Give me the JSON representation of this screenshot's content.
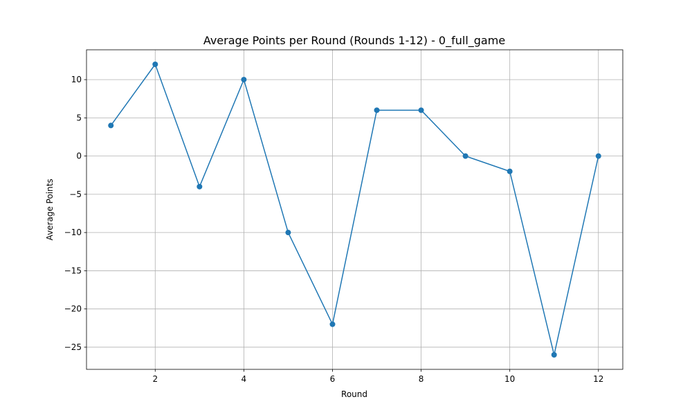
{
  "chart_data": {
    "type": "line",
    "title": "Average Points per Round (Rounds 1-12) - 0_full_game",
    "xlabel": "Round",
    "ylabel": "Average Points",
    "x": [
      1,
      2,
      3,
      4,
      5,
      6,
      7,
      8,
      9,
      10,
      11,
      12
    ],
    "series": [
      {
        "values": [
          4,
          12,
          -4,
          10,
          -10,
          -22,
          6,
          6,
          0,
          -2,
          -26,
          0
        ]
      }
    ],
    "xlim": [
      0.45,
      12.55
    ],
    "ylim": [
      -27.9,
      13.9
    ],
    "xticks": [
      2,
      4,
      6,
      8,
      10,
      12
    ],
    "xtick_labels": [
      "2",
      "4",
      "6",
      "8",
      "10",
      "12"
    ],
    "yticks": [
      10,
      5,
      0,
      -5,
      -10,
      -15,
      -20,
      -25
    ],
    "ytick_labels": [
      "10",
      "5",
      "0",
      "−5",
      "−10",
      "−15",
      "−20",
      "−25"
    ],
    "grid": true,
    "marker": "circle",
    "line_color": "#1f77b4",
    "grid_color": "#b0b0b0"
  }
}
